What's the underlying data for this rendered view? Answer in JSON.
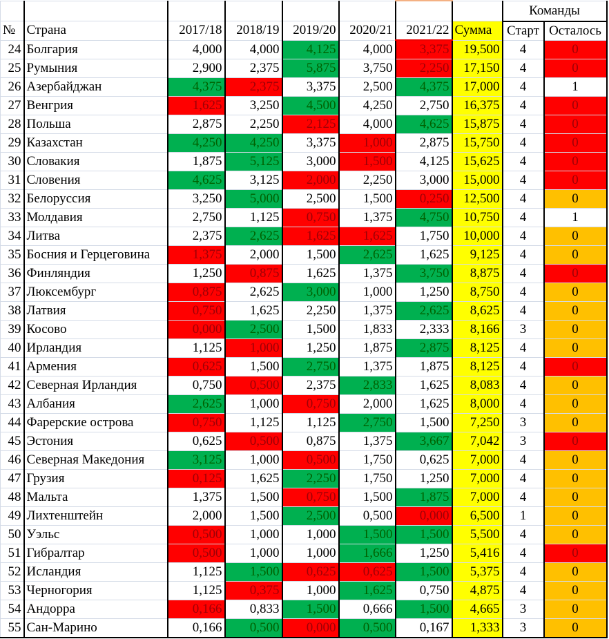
{
  "header": {
    "group_label": "Команды",
    "columns": [
      "№",
      "Страна",
      "2017/18",
      "2018/19",
      "2019/20",
      "2020/21",
      "2021/22",
      "Сумма",
      "Старт",
      "Осталось"
    ]
  },
  "colors": {
    "green_fill": "#00b050",
    "red_fill": "#ff0000",
    "yellow_fill": "#ffff00",
    "orange_fill": "#ffc000",
    "green_text": "#006100",
    "red_text": "#9c0006"
  },
  "rows": [
    {
      "n": "24",
      "country": "Болгария",
      "v": [
        "4,000",
        "4,000",
        "4,125",
        "4,000",
        "3,375"
      ],
      "c": [
        "w",
        "w",
        "g",
        "w",
        "r"
      ],
      "sum": "19,500",
      "start": "4",
      "left": "0",
      "lc": "rr"
    },
    {
      "n": "25",
      "country": "Румыния",
      "v": [
        "2,900",
        "2,375",
        "5,875",
        "3,750",
        "2,250"
      ],
      "c": [
        "w",
        "w",
        "g",
        "w",
        "r"
      ],
      "sum": "17,150",
      "start": "4",
      "left": "0",
      "lc": "rr"
    },
    {
      "n": "26",
      "country": "Азербайджан",
      "v": [
        "4,375",
        "2,375",
        "3,375",
        "2,500",
        "4,375"
      ],
      "c": [
        "g",
        "r",
        "w",
        "w",
        "g"
      ],
      "sum": "17,000",
      "start": "4",
      "left": "1",
      "lc": "w"
    },
    {
      "n": "27",
      "country": "Венгрия",
      "v": [
        "1,625",
        "3,250",
        "4,500",
        "4,250",
        "2,750"
      ],
      "c": [
        "r",
        "w",
        "g",
        "w",
        "w"
      ],
      "sum": "16,375",
      "start": "4",
      "left": "0",
      "lc": "rr"
    },
    {
      "n": "28",
      "country": "Польша",
      "v": [
        "2,875",
        "2,250",
        "2,125",
        "4,000",
        "4,625"
      ],
      "c": [
        "w",
        "w",
        "r",
        "w",
        "g"
      ],
      "sum": "15,875",
      "start": "4",
      "left": "0",
      "lc": "rr"
    },
    {
      "n": "29",
      "country": "Казахстан",
      "v": [
        "4,250",
        "4,250",
        "3,375",
        "1,000",
        "2,875"
      ],
      "c": [
        "g",
        "g",
        "w",
        "r",
        "w"
      ],
      "sum": "15,750",
      "start": "4",
      "left": "0",
      "lc": "rr"
    },
    {
      "n": "30",
      "country": "Словакия",
      "v": [
        "1,875",
        "5,125",
        "3,000",
        "1,500",
        "4,125"
      ],
      "c": [
        "w",
        "g",
        "w",
        "r",
        "w"
      ],
      "sum": "15,625",
      "start": "4",
      "left": "0",
      "lc": "rr"
    },
    {
      "n": "31",
      "country": "Словения",
      "v": [
        "4,625",
        "3,125",
        "2,000",
        "2,250",
        "3,000"
      ],
      "c": [
        "g",
        "w",
        "r",
        "w",
        "w"
      ],
      "sum": "15,000",
      "start": "4",
      "left": "0",
      "lc": "rr"
    },
    {
      "n": "32",
      "country": "Белоруссия",
      "v": [
        "3,250",
        "5,000",
        "2,500",
        "1,500",
        "0,250"
      ],
      "c": [
        "w",
        "g",
        "w",
        "w",
        "r"
      ],
      "sum": "12,500",
      "start": "4",
      "left": "0",
      "lc": "o"
    },
    {
      "n": "33",
      "country": "Молдавия",
      "v": [
        "2,750",
        "1,125",
        "0,750",
        "1,375",
        "4,750"
      ],
      "c": [
        "w",
        "w",
        "r",
        "w",
        "g"
      ],
      "sum": "10,750",
      "start": "4",
      "left": "1",
      "lc": "w"
    },
    {
      "n": "34",
      "country": "Литва",
      "v": [
        "2,375",
        "2,625",
        "1,625",
        "1,625",
        "1,750"
      ],
      "c": [
        "w",
        "g",
        "r",
        "r",
        "w"
      ],
      "sum": "10,000",
      "start": "4",
      "left": "0",
      "lc": "o"
    },
    {
      "n": "35",
      "country": "Босния и Герцеговина",
      "v": [
        "1,375",
        "2,000",
        "1,500",
        "2,625",
        "1,625"
      ],
      "c": [
        "r",
        "w",
        "w",
        "g",
        "w"
      ],
      "sum": "9,125",
      "start": "4",
      "left": "0",
      "lc": "o"
    },
    {
      "n": "36",
      "country": "Финляндия",
      "v": [
        "1,250",
        "0,875",
        "1,625",
        "1,375",
        "3,750"
      ],
      "c": [
        "w",
        "r",
        "w",
        "w",
        "g"
      ],
      "sum": "8,875",
      "start": "4",
      "left": "0",
      "lc": "rr"
    },
    {
      "n": "37",
      "country": "Люксембург",
      "v": [
        "0,875",
        "2,625",
        "3,000",
        "1,000",
        "1,250"
      ],
      "c": [
        "r",
        "w",
        "g",
        "w",
        "w"
      ],
      "sum": "8,750",
      "start": "4",
      "left": "0",
      "lc": "o"
    },
    {
      "n": "38",
      "country": "Латвия",
      "v": [
        "0,750",
        "1,625",
        "2,250",
        "1,375",
        "2,625"
      ],
      "c": [
        "r",
        "w",
        "w",
        "w",
        "g"
      ],
      "sum": "8,625",
      "start": "4",
      "left": "0",
      "lc": "o"
    },
    {
      "n": "39",
      "country": "Косово",
      "v": [
        "0,000",
        "2,500",
        "1,500",
        "1,833",
        "2,333"
      ],
      "c": [
        "r",
        "g",
        "w",
        "w",
        "w"
      ],
      "sum": "8,166",
      "start": "3",
      "left": "0",
      "lc": "o"
    },
    {
      "n": "40",
      "country": "Ирландия",
      "v": [
        "1,125",
        "1,000",
        "1,250",
        "1,875",
        "2,875"
      ],
      "c": [
        "w",
        "r",
        "w",
        "w",
        "g"
      ],
      "sum": "8,125",
      "start": "4",
      "left": "0",
      "lc": "o"
    },
    {
      "n": "41",
      "country": "Армения",
      "v": [
        "0,625",
        "1,500",
        "2,750",
        "1,375",
        "1,875"
      ],
      "c": [
        "r",
        "w",
        "g",
        "w",
        "w"
      ],
      "sum": "8,125",
      "start": "4",
      "left": "0",
      "lc": "rr"
    },
    {
      "n": "42",
      "country": "Северная Ирландия",
      "v": [
        "0,750",
        "0,500",
        "2,375",
        "2,833",
        "1,625"
      ],
      "c": [
        "w",
        "r",
        "w",
        "g",
        "w"
      ],
      "sum": "8,083",
      "start": "4",
      "left": "0",
      "lc": "o"
    },
    {
      "n": "43",
      "country": "Албания",
      "v": [
        "2,625",
        "1,000",
        "0,750",
        "2,000",
        "1,625"
      ],
      "c": [
        "g",
        "w",
        "r",
        "w",
        "w"
      ],
      "sum": "8,000",
      "start": "4",
      "left": "0",
      "lc": "o"
    },
    {
      "n": "44",
      "country": "Фарерские острова",
      "v": [
        "0,750",
        "1,125",
        "1,125",
        "2,750",
        "1,500"
      ],
      "c": [
        "r",
        "w",
        "w",
        "g",
        "w"
      ],
      "sum": "7,250",
      "start": "3",
      "left": "0",
      "lc": "o"
    },
    {
      "n": "45",
      "country": "Эстония",
      "v": [
        "0,625",
        "0,500",
        "0,875",
        "1,375",
        "3,667"
      ],
      "c": [
        "w",
        "r",
        "w",
        "w",
        "g"
      ],
      "sum": "7,042",
      "start": "3",
      "left": "0",
      "lc": "rr"
    },
    {
      "n": "46",
      "country": "Северная Македония",
      "v": [
        "3,125",
        "1,000",
        "0,500",
        "1,750",
        "0,625"
      ],
      "c": [
        "g",
        "w",
        "r",
        "w",
        "w"
      ],
      "sum": "7,000",
      "start": "4",
      "left": "0",
      "lc": "o"
    },
    {
      "n": "47",
      "country": "Грузия",
      "v": [
        "0,125",
        "1,625",
        "2,250",
        "1,750",
        "1,250"
      ],
      "c": [
        "r",
        "w",
        "g",
        "w",
        "w"
      ],
      "sum": "7,000",
      "start": "4",
      "left": "0",
      "lc": "o"
    },
    {
      "n": "48",
      "country": "Мальта",
      "v": [
        "1,375",
        "1,500",
        "0,750",
        "1,500",
        "1,875"
      ],
      "c": [
        "w",
        "w",
        "r",
        "w",
        "g"
      ],
      "sum": "7,000",
      "start": "4",
      "left": "0",
      "lc": "o"
    },
    {
      "n": "49",
      "country": "Лихтенштейн",
      "v": [
        "2,000",
        "1,500",
        "2,500",
        "0,500",
        "0,000"
      ],
      "c": [
        "w",
        "w",
        "g",
        "w",
        "r"
      ],
      "sum": "6,500",
      "start": "1",
      "left": "0",
      "lc": "o"
    },
    {
      "n": "50",
      "country": "Уэльс",
      "v": [
        "0,500",
        "1,000",
        "1,000",
        "1,500",
        "1,500"
      ],
      "c": [
        "r",
        "w",
        "w",
        "g",
        "g"
      ],
      "sum": "5,500",
      "start": "4",
      "left": "0",
      "lc": "o"
    },
    {
      "n": "51",
      "country": "Гибралтар",
      "v": [
        "0,500",
        "1,000",
        "1,000",
        "1,666",
        "1,250"
      ],
      "c": [
        "r",
        "w",
        "w",
        "g",
        "w"
      ],
      "sum": "5,416",
      "start": "4",
      "left": "0",
      "lc": "rr"
    },
    {
      "n": "52",
      "country": "Исландия",
      "v": [
        "1,125",
        "1,500",
        "0,625",
        "0,625",
        "1,500"
      ],
      "c": [
        "w",
        "g",
        "r",
        "r",
        "g"
      ],
      "sum": "5,375",
      "start": "4",
      "left": "0",
      "lc": "o"
    },
    {
      "n": "53",
      "country": "Черногория",
      "v": [
        "1,125",
        "0,375",
        "1,000",
        "1,625",
        "0,750"
      ],
      "c": [
        "w",
        "r",
        "w",
        "g",
        "w"
      ],
      "sum": "4,875",
      "start": "4",
      "left": "0",
      "lc": "o"
    },
    {
      "n": "54",
      "country": "Андорра",
      "v": [
        "0,166",
        "0,833",
        "1,500",
        "0,666",
        "1,500"
      ],
      "c": [
        "r",
        "w",
        "g",
        "w",
        "g"
      ],
      "sum": "4,665",
      "start": "3",
      "left": "0",
      "lc": "o"
    },
    {
      "n": "55",
      "country": "Сан-Марино",
      "v": [
        "0,166",
        "0,500",
        "0,000",
        "0,500",
        "0,167"
      ],
      "c": [
        "w",
        "g",
        "r",
        "g",
        "w"
      ],
      "sum": "1,333",
      "start": "3",
      "left": "0",
      "lc": "o"
    }
  ]
}
